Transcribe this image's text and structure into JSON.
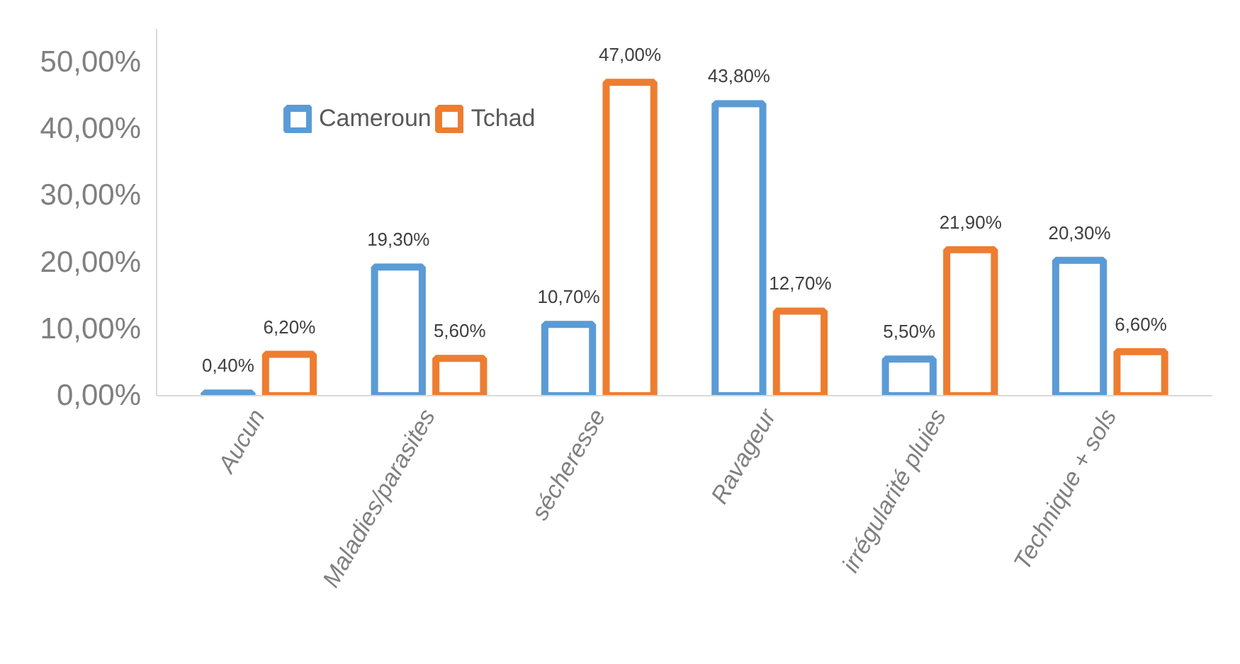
{
  "chart_data": {
    "type": "bar",
    "categories": [
      "Aucun",
      "Maladies/parasites",
      "sécheresse",
      "Ravageur",
      "irrégularité pluies",
      "Technique + sols"
    ],
    "series": [
      {
        "name": "Cameroun",
        "color": "#5b9bd5",
        "values": [
          0.4,
          19.3,
          10.7,
          43.8,
          5.5,
          20.3
        ],
        "value_labels": [
          "0,40%",
          "19,30%",
          "10,70%",
          "43,80%",
          "5,50%",
          "20,30%"
        ]
      },
      {
        "name": "Tchad",
        "color": "#ed7d31",
        "values": [
          6.2,
          5.6,
          47.0,
          12.7,
          21.9,
          6.6
        ],
        "value_labels": [
          "6,20%",
          "5,60%",
          "47,00%",
          "12,70%",
          "21,90%",
          "6,60%"
        ]
      }
    ],
    "ylim": [
      0,
      55
    ],
    "yticks": [
      {
        "value": 0,
        "label": "0,00%"
      },
      {
        "value": 10,
        "label": "10,00%"
      },
      {
        "value": 20,
        "label": "20,00%"
      },
      {
        "value": 30,
        "label": "30,00%"
      },
      {
        "value": 40,
        "label": "40,00%"
      },
      {
        "value": 50,
        "label": "50,00%"
      }
    ],
    "grid": false,
    "legend": "top"
  }
}
